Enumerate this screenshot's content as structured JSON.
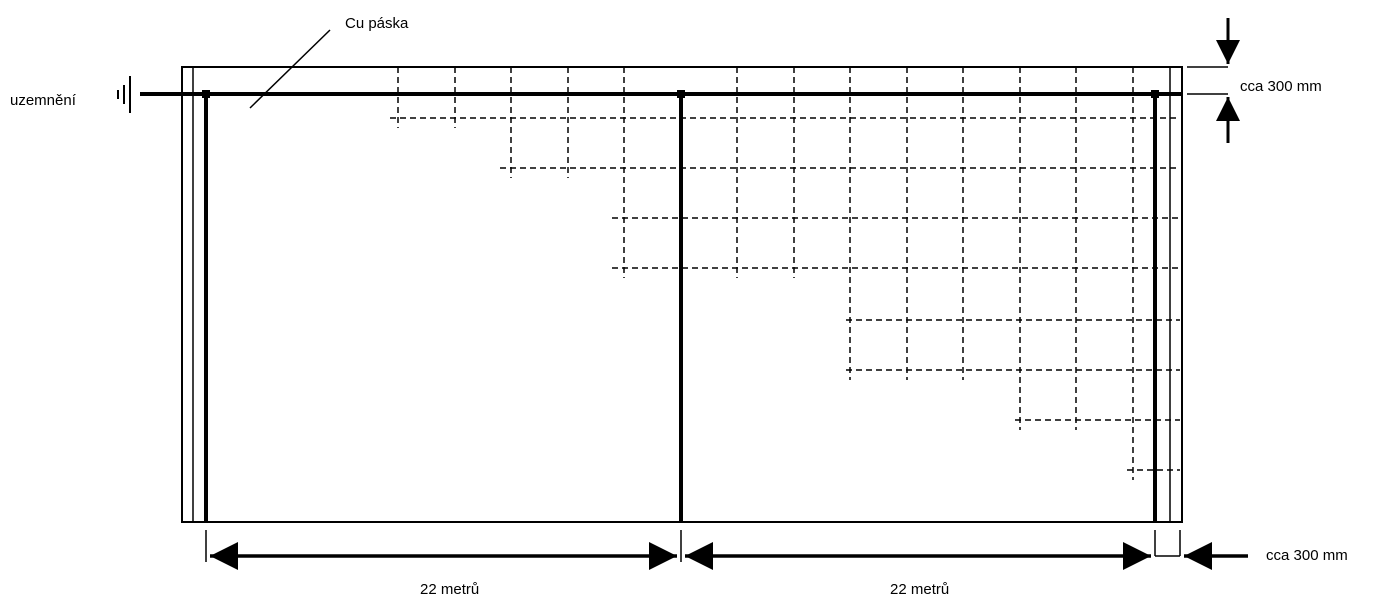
{
  "labels": {
    "cu_strip": "Cu páska",
    "grounding": "uzemnění",
    "top_gap": "cca 300 mm",
    "side_gap": "cca 300 mm",
    "span_left": "22 metrů",
    "span_right": "22 metrů"
  },
  "colors": {
    "line": "#000000",
    "background": "#ffffff"
  }
}
